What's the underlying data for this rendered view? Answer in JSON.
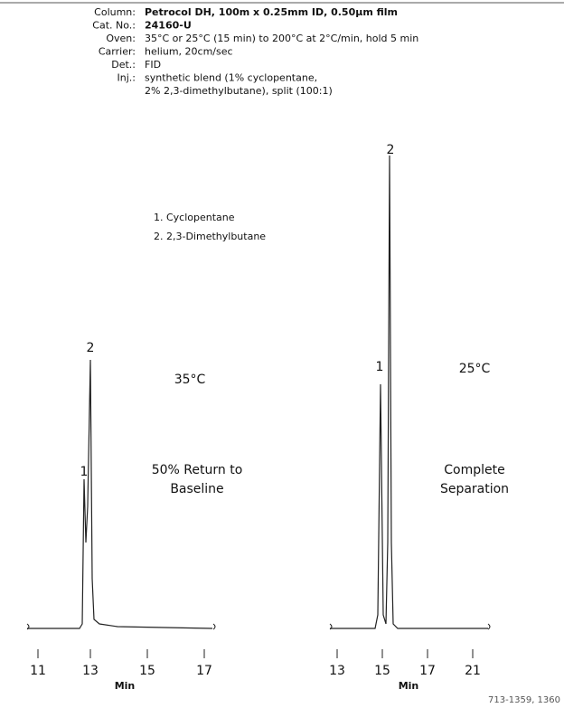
{
  "header": {
    "rows": [
      {
        "label": "Column:",
        "value": "Petrocol DH, 100m x 0.25mm ID, 0.50µm film"
      },
      {
        "label": "Cat. No.:",
        "value": "24160-U"
      },
      {
        "label": "Oven:",
        "value": "35°C or 25°C (15 min) to 200°C at 2°C/min, hold 5 min"
      },
      {
        "label": "Carrier:",
        "value": "helium, 20cm/sec"
      },
      {
        "label": "Det.:",
        "value": "FID"
      },
      {
        "label": "Inj.:",
        "value": "synthetic blend (1% cyclopentane,"
      }
    ],
    "continuation": "2% 2,3-dimethylbutane), split (100:1)"
  },
  "legend": [
    "1.  Cyclopentane",
    "2.  2,3-Dimethylbutane"
  ],
  "panels": [
    {
      "title": "35°C",
      "annotation": [
        "50% Return to",
        "Baseline"
      ],
      "peaks": [
        "1",
        "2"
      ],
      "xticks": [
        11,
        13,
        15,
        17
      ],
      "xlabel": "Min"
    },
    {
      "title": "25°C",
      "annotation": [
        "Complete",
        "Separation"
      ],
      "peaks": [
        "1",
        "2"
      ],
      "xticks": [
        13,
        15,
        17,
        21
      ],
      "xlabel": "Min"
    }
  ],
  "footer": "713-1359, 1360"
}
